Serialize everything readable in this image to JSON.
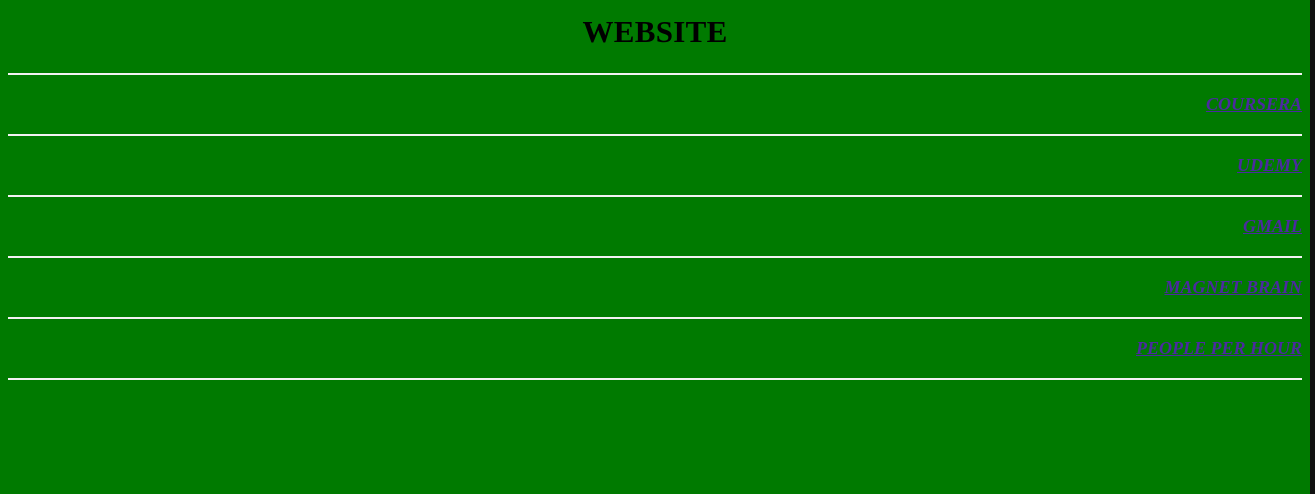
{
  "page": {
    "title": "WEBSITE"
  },
  "links": [
    {
      "label": "COURSERA"
    },
    {
      "label": "UDEMY"
    },
    {
      "label": "GMAIL"
    },
    {
      "label": "MAGNET BRAIN"
    },
    {
      "label": "PEOPLE PER HOUR"
    }
  ],
  "colors": {
    "background": "#007a00",
    "rule": "#f2f2f2",
    "link": "#4b2aa0",
    "title": "#000000"
  }
}
